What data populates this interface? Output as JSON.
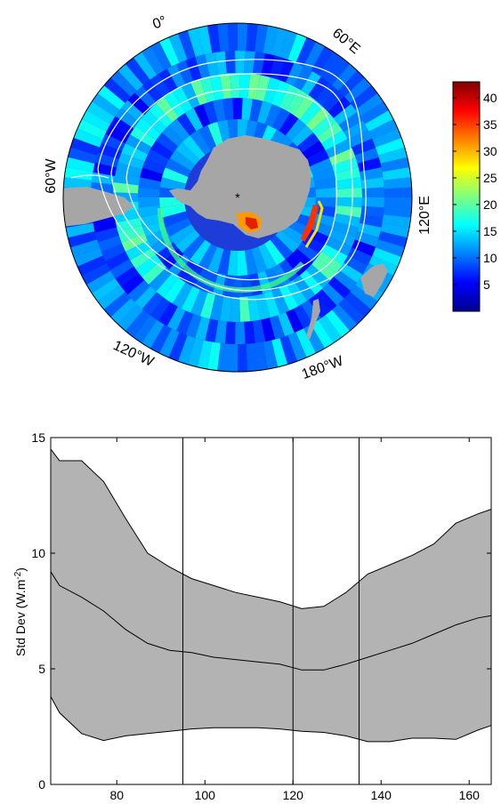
{
  "chart_data": [
    {
      "type": "heatmap",
      "projection": "south-polar-stereographic",
      "geo_labels": [
        "0°",
        "60°E",
        "120°E",
        "180°W",
        "120°W",
        "60°W"
      ],
      "colorbar": {
        "colormap": "jet",
        "ticks": [
          5,
          10,
          15,
          20,
          25,
          30,
          35,
          40
        ],
        "range": [
          0,
          43
        ]
      },
      "pole_marker": "*",
      "land_color": "#a6a6a6",
      "contour_color": "#ffffff"
    },
    {
      "type": "area",
      "x": [
        65,
        67,
        72,
        77,
        82,
        87,
        92,
        97,
        102,
        107,
        112,
        117,
        122,
        127,
        132,
        137,
        142,
        147,
        152,
        157,
        162,
        165
      ],
      "upper": [
        14.5,
        14.0,
        14.0,
        13.1,
        11.5,
        10.0,
        9.4,
        8.9,
        8.6,
        8.3,
        8.1,
        7.9,
        7.6,
        7.7,
        8.3,
        9.1,
        9.5,
        9.9,
        10.4,
        11.3,
        11.7,
        11.9
      ],
      "mean": [
        9.2,
        8.6,
        8.1,
        7.5,
        6.7,
        6.1,
        5.8,
        5.7,
        5.5,
        5.4,
        5.3,
        5.2,
        4.95,
        4.95,
        5.2,
        5.5,
        5.8,
        6.1,
        6.5,
        6.9,
        7.2,
        7.3
      ],
      "lower": [
        3.8,
        3.1,
        2.2,
        1.9,
        2.1,
        2.2,
        2.3,
        2.4,
        2.45,
        2.45,
        2.45,
        2.4,
        2.3,
        2.25,
        2.1,
        1.85,
        1.85,
        2.0,
        2.0,
        1.95,
        2.35,
        2.55
      ],
      "vlines": [
        95,
        120,
        135
      ],
      "xlim": [
        65,
        165
      ],
      "ylim": [
        0,
        15
      ],
      "xticks": [
        80,
        100,
        120,
        140,
        160
      ],
      "yticks": [
        0,
        5,
        10,
        15
      ],
      "xlabel": "",
      "ylabel": "Std Dev (W.m",
      "ylabel_exp": "-2",
      "ylabel_close": ")",
      "fill_color": "#b3b3b3",
      "line_color": "#000000"
    }
  ]
}
